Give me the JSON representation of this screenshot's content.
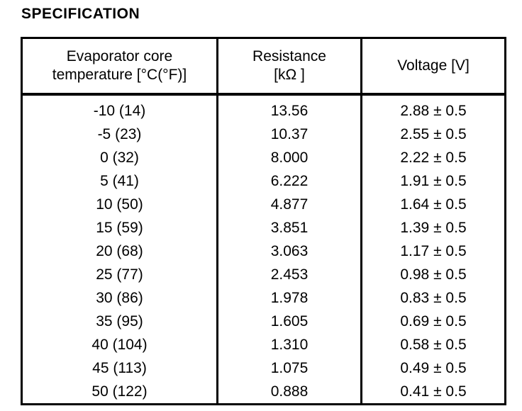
{
  "page": {
    "title": "SPECIFICATION"
  },
  "table": {
    "headers": {
      "temperature": {
        "line1": "Evaporator core",
        "line2": "temperature [°C(°F)]"
      },
      "resistance": {
        "line1": "Resistance",
        "line2": "[kΩ ]"
      },
      "voltage": {
        "line1": "Voltage [V]",
        "line2": ""
      }
    },
    "rows": [
      {
        "temperature": "-10 (14)",
        "resistance": "13.56",
        "voltage": "2.88 ± 0.5"
      },
      {
        "temperature": "-5 (23)",
        "resistance": "10.37",
        "voltage": "2.55 ± 0.5"
      },
      {
        "temperature": "0 (32)",
        "resistance": "8.000",
        "voltage": "2.22 ± 0.5"
      },
      {
        "temperature": "5 (41)",
        "resistance": "6.222",
        "voltage": "1.91 ± 0.5"
      },
      {
        "temperature": "10 (50)",
        "resistance": "4.877",
        "voltage": "1.64 ± 0.5"
      },
      {
        "temperature": "15 (59)",
        "resistance": "3.851",
        "voltage": "1.39 ± 0.5"
      },
      {
        "temperature": "20 (68)",
        "resistance": "3.063",
        "voltage": "1.17 ± 0.5"
      },
      {
        "temperature": "25 (77)",
        "resistance": "2.453",
        "voltage": "0.98 ± 0.5"
      },
      {
        "temperature": "30 (86)",
        "resistance": "1.978",
        "voltage": "0.83 ± 0.5"
      },
      {
        "temperature": "35 (95)",
        "resistance": "1.605",
        "voltage": "0.69 ± 0.5"
      },
      {
        "temperature": "40 (104)",
        "resistance": "1.310",
        "voltage": "0.58 ± 0.5"
      },
      {
        "temperature": "45 (113)",
        "resistance": "1.075",
        "voltage": "0.49 ± 0.5"
      },
      {
        "temperature": "50 (122)",
        "resistance": "0.888",
        "voltage": "0.41 ± 0.5"
      }
    ],
    "colors": {
      "ink": "#000000",
      "paper": "#ffffff"
    }
  }
}
